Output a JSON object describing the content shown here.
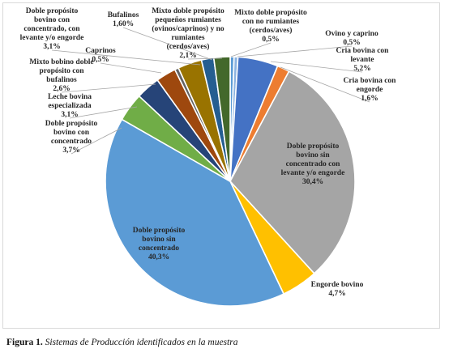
{
  "chart_data": {
    "type": "pie",
    "title": "",
    "series": [
      {
        "name": "Mixto doble propósito con no rumiantes (cerdos/aves)",
        "value": 0.5,
        "label": "0,5%",
        "color": "#5b9bd5"
      },
      {
        "name": "Ovino y caprino",
        "value": 0.5,
        "label": "0,5%",
        "color": "#8cb3e0"
      },
      {
        "name": "Cría bovina con levante",
        "value": 5.2,
        "label": "5,2%",
        "color": "#4472c4"
      },
      {
        "name": "Cría bovina con engorde",
        "value": 1.6,
        "label": "1,6%",
        "color": "#ed7d31"
      },
      {
        "name": "Doble propósito sin concentrado con levante y/o engorde",
        "value": 30.4,
        "label": "30,4%",
        "color": "#a5a5a5"
      },
      {
        "name": "Engorde bovino",
        "value": 4.7,
        "label": "4,7%",
        "color": "#ffc000"
      },
      {
        "name": "Doble propósito bovino sin concentrado",
        "value": 40.3,
        "label": "40,3%",
        "color": "#5b9bd5"
      },
      {
        "name": "Doble propósito bovino con concentrado",
        "value": 3.7,
        "label": "3,7%",
        "color": "#70ad47"
      },
      {
        "name": "Leche bovina especializada",
        "value": 3.1,
        "label": "3,1%",
        "color": "#264478"
      },
      {
        "name": "Mixto bobino doble propósito con bufalinos",
        "value": 2.6,
        "label": "2,6%",
        "color": "#9e480e"
      },
      {
        "name": "Caprinos",
        "value": 0.5,
        "label": "0,5%",
        "color": "#636363"
      },
      {
        "name": "Doble propósito bovino con concentrado, con levante y/o engorde",
        "value": 3.1,
        "label": "3,1%",
        "color": "#997300"
      },
      {
        "name": "Bufalinos",
        "value": 1.6,
        "label": "1,60%",
        "color": "#255e91"
      },
      {
        "name": "Mixto doble propósito pequeños rumiantes (ovinos/caprinos) y no rumiantes (cerdos/aves)",
        "value": 2.1,
        "label": "2,1%",
        "color": "#43682b"
      }
    ],
    "labels": [
      {
        "lines": [
          "Mixto doble propósito",
          "con no rumiantes",
          "(cerdos/aves)",
          "0,5%"
        ]
      },
      {
        "lines": [
          "Ovino y caprino",
          "0,5%"
        ]
      },
      {
        "lines": [
          "Cria bovina con",
          "levante",
          "5,2%"
        ]
      },
      {
        "lines": [
          "Cria bovina con",
          "engorde",
          "1,6%"
        ]
      },
      {
        "lines": [
          "Doble propósito",
          "bovino sin",
          "concentrado con",
          "levante y/o engorde",
          "30,4%"
        ]
      },
      {
        "lines": [
          "Engorde bovino",
          "4,7%"
        ]
      },
      {
        "lines": [
          "Doble propósito",
          "bovino sin",
          "concentrado",
          "40,3%"
        ]
      },
      {
        "lines": [
          "Doble propósito",
          "bovino con",
          "concentrado",
          "3,7%"
        ]
      },
      {
        "lines": [
          "Leche bovina",
          "especializada",
          "3,1%"
        ]
      },
      {
        "lines": [
          "Mixto bobino doble",
          "propósito con",
          "bufalinos",
          "2,6%"
        ]
      },
      {
        "lines": [
          "Caprinos",
          "0,5%"
        ]
      },
      {
        "lines": [
          "Doble propósito",
          "bovino con",
          "concentrado, con",
          "levante y/o engorde",
          "3,1%"
        ]
      },
      {
        "lines": [
          "Bufalinos",
          "1,60%"
        ]
      },
      {
        "lines": [
          "Mixto doble propósito",
          "pequeños rumiantes",
          "(ovinos/caprinos) y no",
          "rumiantes",
          "(cerdos/aves)",
          "2,1%"
        ]
      }
    ]
  },
  "caption": {
    "figure_label": "Figura 1.",
    "text": "Sistemas de Producción identificados en la muestra"
  }
}
